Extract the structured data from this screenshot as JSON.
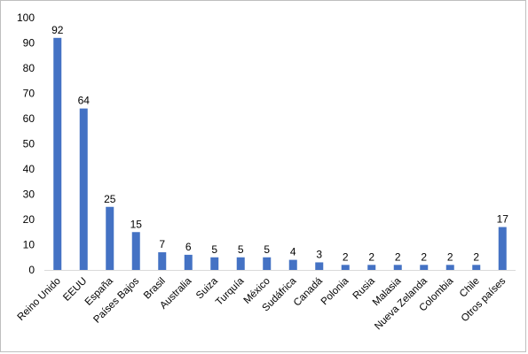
{
  "chart_data": {
    "type": "bar",
    "title": "",
    "xlabel": "",
    "ylabel": "",
    "categories": [
      "Reino Unido",
      "EEUU",
      "España",
      "Países Bajos",
      "Brasil",
      "Australia",
      "Suiza",
      "Turquía",
      "México",
      "Sudáfrica",
      "Canadá",
      "Polonia",
      "Rusia",
      "Malasia",
      "Nueva Zelanda",
      "Colombia",
      "Chile",
      "Otros países"
    ],
    "values": [
      92,
      64,
      25,
      15,
      7,
      6,
      5,
      5,
      5,
      4,
      3,
      2,
      2,
      2,
      2,
      2,
      2,
      17
    ],
    "data_labels": [
      "92",
      "64",
      "25",
      "15",
      "7",
      "6",
      "5",
      "5",
      "5",
      "4",
      "3",
      "2",
      "2",
      "2",
      "2",
      "2",
      "2",
      "17"
    ],
    "ylim": [
      0,
      100
    ],
    "yticks": [
      "0",
      "10",
      "20",
      "30",
      "40",
      "50",
      "60",
      "70",
      "80",
      "90",
      "100"
    ],
    "grid": false,
    "legend": "none",
    "bar_color": "#4472c4",
    "axis_color": "#d9d9d9"
  }
}
